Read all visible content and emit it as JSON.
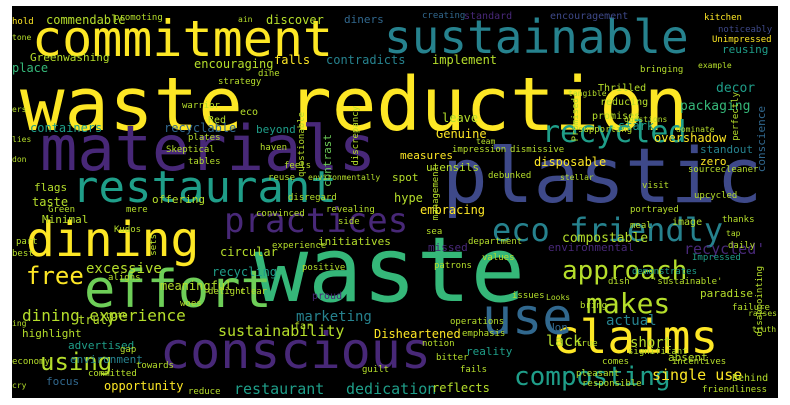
{
  "palette": {
    "yellow": "#fde725",
    "lime": "#b5de2b",
    "green": "#6ece58",
    "teal": "#35b779",
    "aqua": "#1f9e89",
    "cyan": "#26828e",
    "blue": "#31688e",
    "slate": "#3e4989",
    "indigo": "#482878",
    "purple": "#440154"
  },
  "words": [
    {
      "text": "waste reduction",
      "size": 74,
      "color": "yellow"
    },
    {
      "text": "waste",
      "size": 90,
      "color": "teal"
    },
    {
      "text": "plastic",
      "size": 76,
      "color": "slate"
    },
    {
      "text": "materials",
      "size": 62,
      "color": "indigo"
    },
    {
      "text": "commitment",
      "size": 50,
      "color": "yellow"
    },
    {
      "text": "sustainable",
      "size": 46,
      "color": "cyan"
    },
    {
      "text": "restaurant",
      "size": 44,
      "color": "aqua"
    },
    {
      "text": "dining",
      "size": 48,
      "color": "yellow"
    },
    {
      "text": "effort",
      "size": 52,
      "color": "green"
    },
    {
      "text": "conscious",
      "size": 50,
      "color": "indigo"
    },
    {
      "text": "claims",
      "size": 46,
      "color": "yellow"
    },
    {
      "text": "use",
      "size": 50,
      "color": "blue"
    },
    {
      "text": "practices",
      "size": 34,
      "color": "indigo"
    },
    {
      "text": "eco friendly",
      "size": 32,
      "color": "cyan"
    },
    {
      "text": "recycled",
      "size": 30,
      "color": "aqua"
    },
    {
      "text": "approach",
      "size": 26,
      "color": "lime"
    },
    {
      "text": "makes",
      "size": 28,
      "color": "lime"
    },
    {
      "text": "composting",
      "size": 26,
      "color": "aqua"
    },
    {
      "text": "free",
      "size": 24,
      "color": "yellow"
    },
    {
      "text": "using",
      "size": 24,
      "color": "lime"
    },
    {
      "text": "dining experience",
      "size": 16,
      "color": "lime"
    },
    {
      "text": "excessive",
      "size": 14,
      "color": "lime"
    },
    {
      "text": "sustainability",
      "size": 15,
      "color": "lime"
    },
    {
      "text": "restaurant",
      "size": 15,
      "color": "aqua"
    },
    {
      "text": "dedication",
      "size": 15,
      "color": "aqua"
    },
    {
      "text": "marketing",
      "size": 14,
      "color": "cyan"
    },
    {
      "text": "compostable",
      "size": 13,
      "color": "lime"
    },
    {
      "text": "single use",
      "size": 15,
      "color": "yellow"
    },
    {
      "text": "recycled'",
      "size": 15,
      "color": "indigo"
    },
    {
      "text": "lack",
      "size": 15,
      "color": "lime"
    },
    {
      "text": "actual",
      "size": 14,
      "color": "cyan"
    },
    {
      "text": "short",
      "size": 14,
      "color": "lime"
    },
    {
      "text": "commendable",
      "size": 12,
      "color": "lime"
    },
    {
      "text": "hold",
      "size": 9,
      "color": "yellow"
    },
    {
      "text": "discover",
      "size": 12,
      "color": "lime"
    },
    {
      "text": "diners",
      "size": 11,
      "color": "blue"
    },
    {
      "text": "creating",
      "size": 9,
      "color": "blue"
    },
    {
      "text": "standard",
      "size": 10,
      "color": "indigo"
    },
    {
      "text": "encouragement",
      "size": 10,
      "color": "slate"
    },
    {
      "text": "kitchen",
      "size": 9,
      "color": "yellow"
    },
    {
      "text": "reusing",
      "size": 11,
      "color": "aqua"
    },
    {
      "text": "noticeably",
      "size": 9,
      "color": "slate"
    },
    {
      "text": "Unimpressed",
      "size": 9,
      "color": "yellow"
    },
    {
      "text": "Greenwashing",
      "size": 11,
      "color": "lime"
    },
    {
      "text": "place",
      "size": 12,
      "color": "teal"
    },
    {
      "text": "encouraging",
      "size": 12,
      "color": "lime"
    },
    {
      "text": "falls",
      "size": 12,
      "color": "yellow"
    },
    {
      "text": "contradicts",
      "size": 12,
      "color": "cyan"
    },
    {
      "text": "implement",
      "size": 12,
      "color": "lime"
    },
    {
      "text": "packaging",
      "size": 13,
      "color": "teal"
    },
    {
      "text": "decor",
      "size": 13,
      "color": "aqua"
    },
    {
      "text": "conscience",
      "size": 11,
      "color": "blue"
    },
    {
      "text": "containers",
      "size": 12,
      "color": "aqua"
    },
    {
      "text": "recyclable",
      "size": 12,
      "color": "blue"
    },
    {
      "text": "beyond",
      "size": 11,
      "color": "aqua"
    },
    {
      "text": "leave",
      "size": 12,
      "color": "lime"
    },
    {
      "text": "stark",
      "size": 12,
      "color": "aqua"
    },
    {
      "text": "overshadow",
      "size": 12,
      "color": "yellow"
    },
    {
      "text": "Genuine",
      "size": 12,
      "color": "yellow"
    },
    {
      "text": "contrast",
      "size": 11,
      "color": "green"
    },
    {
      "text": "measures",
      "size": 11,
      "color": "yellow"
    },
    {
      "text": "utensils",
      "size": 11,
      "color": "lime"
    },
    {
      "text": "disposable",
      "size": 12,
      "color": "yellow"
    },
    {
      "text": "zero",
      "size": 11,
      "color": "yellow"
    },
    {
      "text": "standout",
      "size": 11,
      "color": "cyan"
    },
    {
      "text": "flags",
      "size": 11,
      "color": "lime"
    },
    {
      "text": "taste",
      "size": 12,
      "color": "lime"
    },
    {
      "text": "spot",
      "size": 11,
      "color": "lime"
    },
    {
      "text": "hype",
      "size": 12,
      "color": "lime"
    },
    {
      "text": "embracing",
      "size": 12,
      "color": "yellow"
    },
    {
      "text": "offering",
      "size": 11,
      "color": "lime"
    },
    {
      "text": "Minimal",
      "size": 11,
      "color": "lime"
    },
    {
      "text": "initiatives",
      "size": 11,
      "color": "lime"
    },
    {
      "text": "circular",
      "size": 12,
      "color": "lime"
    },
    {
      "text": "recycling",
      "size": 12,
      "color": "aqua"
    },
    {
      "text": "meaningful",
      "size": 12,
      "color": "lime"
    },
    {
      "text": "truly",
      "size": 12,
      "color": "lime"
    },
    {
      "text": "highlight",
      "size": 11,
      "color": "lime"
    },
    {
      "text": "advertised",
      "size": 11,
      "color": "aqua"
    },
    {
      "text": "environment",
      "size": 11,
      "color": "cyan"
    },
    {
      "text": "focus",
      "size": 11,
      "color": "blue"
    },
    {
      "text": "opportunity",
      "size": 12,
      "color": "yellow"
    },
    {
      "text": "reflects",
      "size": 12,
      "color": "lime"
    },
    {
      "text": "Disheartened",
      "size": 12,
      "color": "yellow"
    },
    {
      "text": "reality",
      "size": 11,
      "color": "aqua"
    },
    {
      "text": "environmental",
      "size": 11,
      "color": "indigo"
    },
    {
      "text": "missed",
      "size": 11,
      "color": "indigo"
    },
    {
      "text": "Non",
      "size": 11,
      "color": "blue"
    },
    {
      "text": "paradise",
      "size": 11,
      "color": "lime"
    },
    {
      "text": "absent",
      "size": 11,
      "color": "lime"
    },
    {
      "text": "Behind",
      "size": 10,
      "color": "lime"
    },
    {
      "text": "friendliness",
      "size": 9,
      "color": "lime"
    },
    {
      "text": "image",
      "size": 10,
      "color": "lime"
    },
    {
      "text": "Thrilled",
      "size": 10,
      "color": "lime"
    },
    {
      "text": "reducing",
      "size": 10,
      "color": "lime"
    },
    {
      "text": "promises",
      "size": 10,
      "color": "lime"
    },
    {
      "text": "upcycled",
      "size": 9,
      "color": "lime"
    },
    {
      "text": "thanks",
      "size": 9,
      "color": "lime"
    },
    {
      "text": "Impressed",
      "size": 9,
      "color": "aqua"
    },
    {
      "text": "demonstrates",
      "size": 9,
      "color": "aqua"
    },
    {
      "text": "failure",
      "size": 9,
      "color": "lime"
    },
    {
      "text": "dish",
      "size": 9,
      "color": "lime"
    },
    {
      "text": "issues",
      "size": 9,
      "color": "lime"
    },
    {
      "text": "bring",
      "size": 9,
      "color": "lime"
    },
    {
      "text": "true",
      "size": 9,
      "color": "lime"
    },
    {
      "text": "comes",
      "size": 9,
      "color": "lime"
    },
    {
      "text": "pleasant",
      "size": 9,
      "color": "lime"
    },
    {
      "text": "significant",
      "size": 9,
      "color": "lime"
    },
    {
      "text": "incentives",
      "size": 9,
      "color": "lime"
    },
    {
      "text": "responsible",
      "size": 9,
      "color": "lime"
    },
    {
      "text": "fails",
      "size": 9,
      "color": "lime"
    },
    {
      "text": "bitter",
      "size": 9,
      "color": "lime"
    },
    {
      "text": "notion",
      "size": 9,
      "color": "lime"
    },
    {
      "text": "guilt",
      "size": 9,
      "color": "lime"
    },
    {
      "text": "proud",
      "size": 10,
      "color": "indigo"
    },
    {
      "text": "far",
      "size": 10,
      "color": "lime"
    },
    {
      "text": "woes",
      "size": 9,
      "color": "lime"
    },
    {
      "text": "delight",
      "size": 9,
      "color": "lime"
    },
    {
      "text": "experience",
      "size": 9,
      "color": "lime"
    },
    {
      "text": "patrons",
      "size": 9,
      "color": "lime"
    },
    {
      "text": "department",
      "size": 9,
      "color": "lime"
    },
    {
      "text": "values",
      "size": 9,
      "color": "lime"
    },
    {
      "text": "Red",
      "size": 10,
      "color": "lime"
    },
    {
      "text": "eco",
      "size": 10,
      "color": "lime"
    },
    {
      "text": "plates",
      "size": 9,
      "color": "lime"
    },
    {
      "text": "strategy",
      "size": 9,
      "color": "lime"
    },
    {
      "text": "dine",
      "size": 9,
      "color": "lime"
    },
    {
      "text": "haven",
      "size": 9,
      "color": "lime"
    },
    {
      "text": "tables",
      "size": 9,
      "color": "lime"
    },
    {
      "text": "Skeptical",
      "size": 9,
      "color": "lime"
    },
    {
      "text": "warrior",
      "size": 9,
      "color": "lime"
    },
    {
      "text": "promoting",
      "size": 9,
      "color": "lime"
    },
    {
      "text": "supporting",
      "size": 9,
      "color": "lime"
    },
    {
      "text": "bringing",
      "size": 9,
      "color": "lime"
    },
    {
      "text": "feels",
      "size": 9,
      "color": "lime"
    },
    {
      "text": "reuse",
      "size": 9,
      "color": "lime"
    },
    {
      "text": "visit",
      "size": 9,
      "color": "lime"
    },
    {
      "text": "sourcecleaner",
      "size": 9,
      "color": "lime"
    },
    {
      "text": "environmentally",
      "size": 8,
      "color": "lime"
    },
    {
      "text": "Green",
      "size": 9,
      "color": "lime"
    },
    {
      "text": "mere",
      "size": 9,
      "color": "lime"
    },
    {
      "text": "disregard",
      "size": 9,
      "color": "lime"
    },
    {
      "text": "revealing",
      "size": 9,
      "color": "lime"
    },
    {
      "text": "side",
      "size": 9,
      "color": "lime"
    },
    {
      "text": "convinced",
      "size": 9,
      "color": "lime"
    },
    {
      "text": "Kudos",
      "size": 9,
      "color": "lime"
    },
    {
      "text": "sea",
      "size": 9,
      "color": "lime"
    },
    {
      "text": "portrayed",
      "size": 9,
      "color": "lime"
    },
    {
      "text": "meal",
      "size": 9,
      "color": "lime"
    },
    {
      "text": "daily",
      "size": 9,
      "color": "lime"
    },
    {
      "text": "'sustainable'",
      "size": 9,
      "color": "lime"
    },
    {
      "text": "best",
      "size": 9,
      "color": "lime"
    },
    {
      "text": "part",
      "size": 9,
      "color": "lime"
    },
    {
      "text": "clear",
      "size": 9,
      "color": "lime"
    },
    {
      "text": "positive",
      "size": 9,
      "color": "lime"
    },
    {
      "text": "emphasis",
      "size": 9,
      "color": "lime"
    },
    {
      "text": "operations",
      "size": 9,
      "color": "lime"
    },
    {
      "text": "committed",
      "size": 9,
      "color": "lime"
    },
    {
      "text": "towards",
      "size": 9,
      "color": "lime"
    },
    {
      "text": "gap",
      "size": 9,
      "color": "lime"
    },
    {
      "text": "note",
      "size": 9,
      "color": "lime"
    },
    {
      "text": "economy",
      "size": 9,
      "color": "lime"
    },
    {
      "text": "reduce",
      "size": 9,
      "color": "lime"
    },
    {
      "text": "dismissive",
      "size": 9,
      "color": "lime"
    },
    {
      "text": "questionable",
      "size": 9,
      "color": "lime"
    },
    {
      "text": "management",
      "size": 9,
      "color": "lime"
    },
    {
      "text": "debunked",
      "size": 9,
      "color": "lime"
    },
    {
      "text": "Promised",
      "size": 9,
      "color": "lime"
    },
    {
      "text": "impression",
      "size": 9,
      "color": "lime"
    },
    {
      "text": "discrepancy",
      "size": 9,
      "color": "lime"
    },
    {
      "text": "disappointing",
      "size": 9,
      "color": "lime"
    },
    {
      "text": "perfectly",
      "size": 9,
      "color": "lime"
    },
    {
      "text": "truth",
      "size": 8,
      "color": "lime"
    },
    {
      "text": "raises",
      "size": 8,
      "color": "lime"
    },
    {
      "text": "questions",
      "size": 8,
      "color": "lime"
    },
    {
      "text": "dominate",
      "size": 8,
      "color": "lime"
    },
    {
      "text": "stellar",
      "size": 8,
      "color": "lime"
    },
    {
      "text": "tangible",
      "size": 8,
      "color": "lime"
    },
    {
      "text": "example",
      "size": 8,
      "color": "lime"
    },
    {
      "text": "team",
      "size": 8,
      "color": "lime"
    },
    {
      "text": "lies",
      "size": 8,
      "color": "lime"
    },
    {
      "text": "don",
      "size": 8,
      "color": "lime"
    },
    {
      "text": "tone",
      "size": 8,
      "color": "lime"
    },
    {
      "text": "ain",
      "size": 8,
      "color": "lime"
    },
    {
      "text": "aligns",
      "size": 9,
      "color": "lime"
    },
    {
      "text": "sets",
      "size": 9,
      "color": "lime"
    },
    {
      "text": "ing",
      "size": 8,
      "color": "lime"
    },
    {
      "text": "tap",
      "size": 8,
      "color": "lime"
    },
    {
      "text": "cry",
      "size": 8,
      "color": "lime"
    },
    {
      "text": "Looks",
      "size": 8,
      "color": "lime"
    },
    {
      "text": "ers",
      "size": 8,
      "color": "lime"
    }
  ]
}
